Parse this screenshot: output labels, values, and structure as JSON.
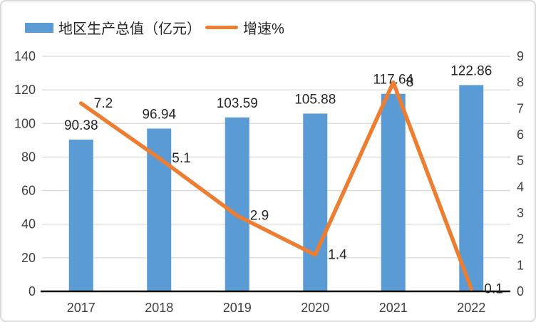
{
  "legend": {
    "bar_label": "地区生产总值（亿元）",
    "line_label": "增速%"
  },
  "colors": {
    "bar": "#5b9bd5",
    "line": "#ed7d31",
    "grid": "#d9d9d9",
    "axis_line": "#000000",
    "tick_text": "#404040",
    "data_label_text": "#262626",
    "frame_border": "#d9d9d9"
  },
  "chart_data": {
    "type": "combo (bar + line)",
    "title": "",
    "categories": [
      "2017",
      "2018",
      "2019",
      "2020",
      "2021",
      "2022"
    ],
    "series": [
      {
        "name": "地区生产总值（亿元）",
        "type": "bar",
        "axis": "left",
        "values": [
          90.38,
          96.94,
          103.59,
          105.88,
          117.64,
          122.86
        ],
        "data_labels": [
          "90.38",
          "96.94",
          "103.59",
          "105.88",
          "117.64",
          "122.86"
        ]
      },
      {
        "name": "增速%",
        "type": "line",
        "axis": "right",
        "values": [
          7.2,
          5.1,
          2.9,
          1.4,
          8,
          0.1
        ],
        "data_labels": [
          "7.2",
          "5.1",
          "2.9",
          "1.4",
          "8",
          "0.1"
        ]
      }
    ],
    "left_axis": {
      "label": "",
      "min": 0,
      "max": 140,
      "step": 20,
      "ticks": [
        "0",
        "20",
        "40",
        "60",
        "80",
        "100",
        "120",
        "140"
      ]
    },
    "right_axis": {
      "label": "",
      "min": 0,
      "max": 9,
      "step": 1,
      "ticks": [
        "0",
        "1",
        "2",
        "3",
        "4",
        "5",
        "6",
        "7",
        "8",
        "9"
      ]
    },
    "grid": "horizontal only",
    "legend_position": "top-left"
  }
}
